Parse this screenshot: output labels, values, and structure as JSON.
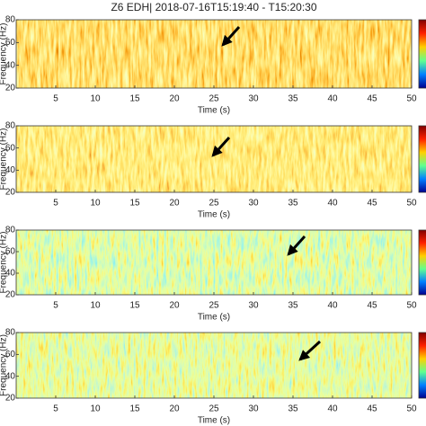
{
  "chart_data": [
    {
      "type": "spectrogram",
      "title": "Z6 EDH| 2018-07-16T15:19:40 - T15:20:30",
      "xlabel": "Time (s)",
      "ylabel": "Frequency (Hz)",
      "xlim": [
        0,
        50
      ],
      "xticks": [
        5,
        10,
        15,
        20,
        25,
        30,
        35,
        40,
        45,
        50
      ],
      "ylim": [
        20,
        80
      ],
      "yticks": [
        20,
        40,
        60,
        80
      ]
    },
    {
      "type": "spectrogram",
      "xlabel": "Time (s)",
      "ylabel": "Frequency (Hz)",
      "xlim": [
        0,
        50
      ],
      "xticks": [
        5,
        10,
        15,
        20,
        25,
        30,
        35,
        40,
        45,
        50
      ],
      "ylim": [
        20,
        80
      ],
      "yticks": [
        20,
        40,
        60,
        80
      ]
    },
    {
      "type": "spectrogram",
      "xlabel": "Time (s)",
      "ylabel": "Frequency (Hz)",
      "xlim": [
        0,
        50
      ],
      "xticks": [
        5,
        10,
        15,
        20,
        25,
        30,
        35,
        40,
        45,
        50
      ],
      "ylim": [
        20,
        80
      ],
      "yticks": [
        20,
        40,
        60,
        80
      ]
    },
    {
      "type": "spectrogram",
      "xlabel": "Time (s)",
      "ylabel": "Frequency (Hz)",
      "xlim": [
        0,
        50
      ],
      "xticks": [
        5,
        10,
        15,
        20,
        25,
        30,
        35,
        40,
        45,
        50
      ],
      "ylim": [
        20,
        80
      ],
      "yticks": [
        20,
        40,
        60,
        80
      ]
    }
  ]
}
